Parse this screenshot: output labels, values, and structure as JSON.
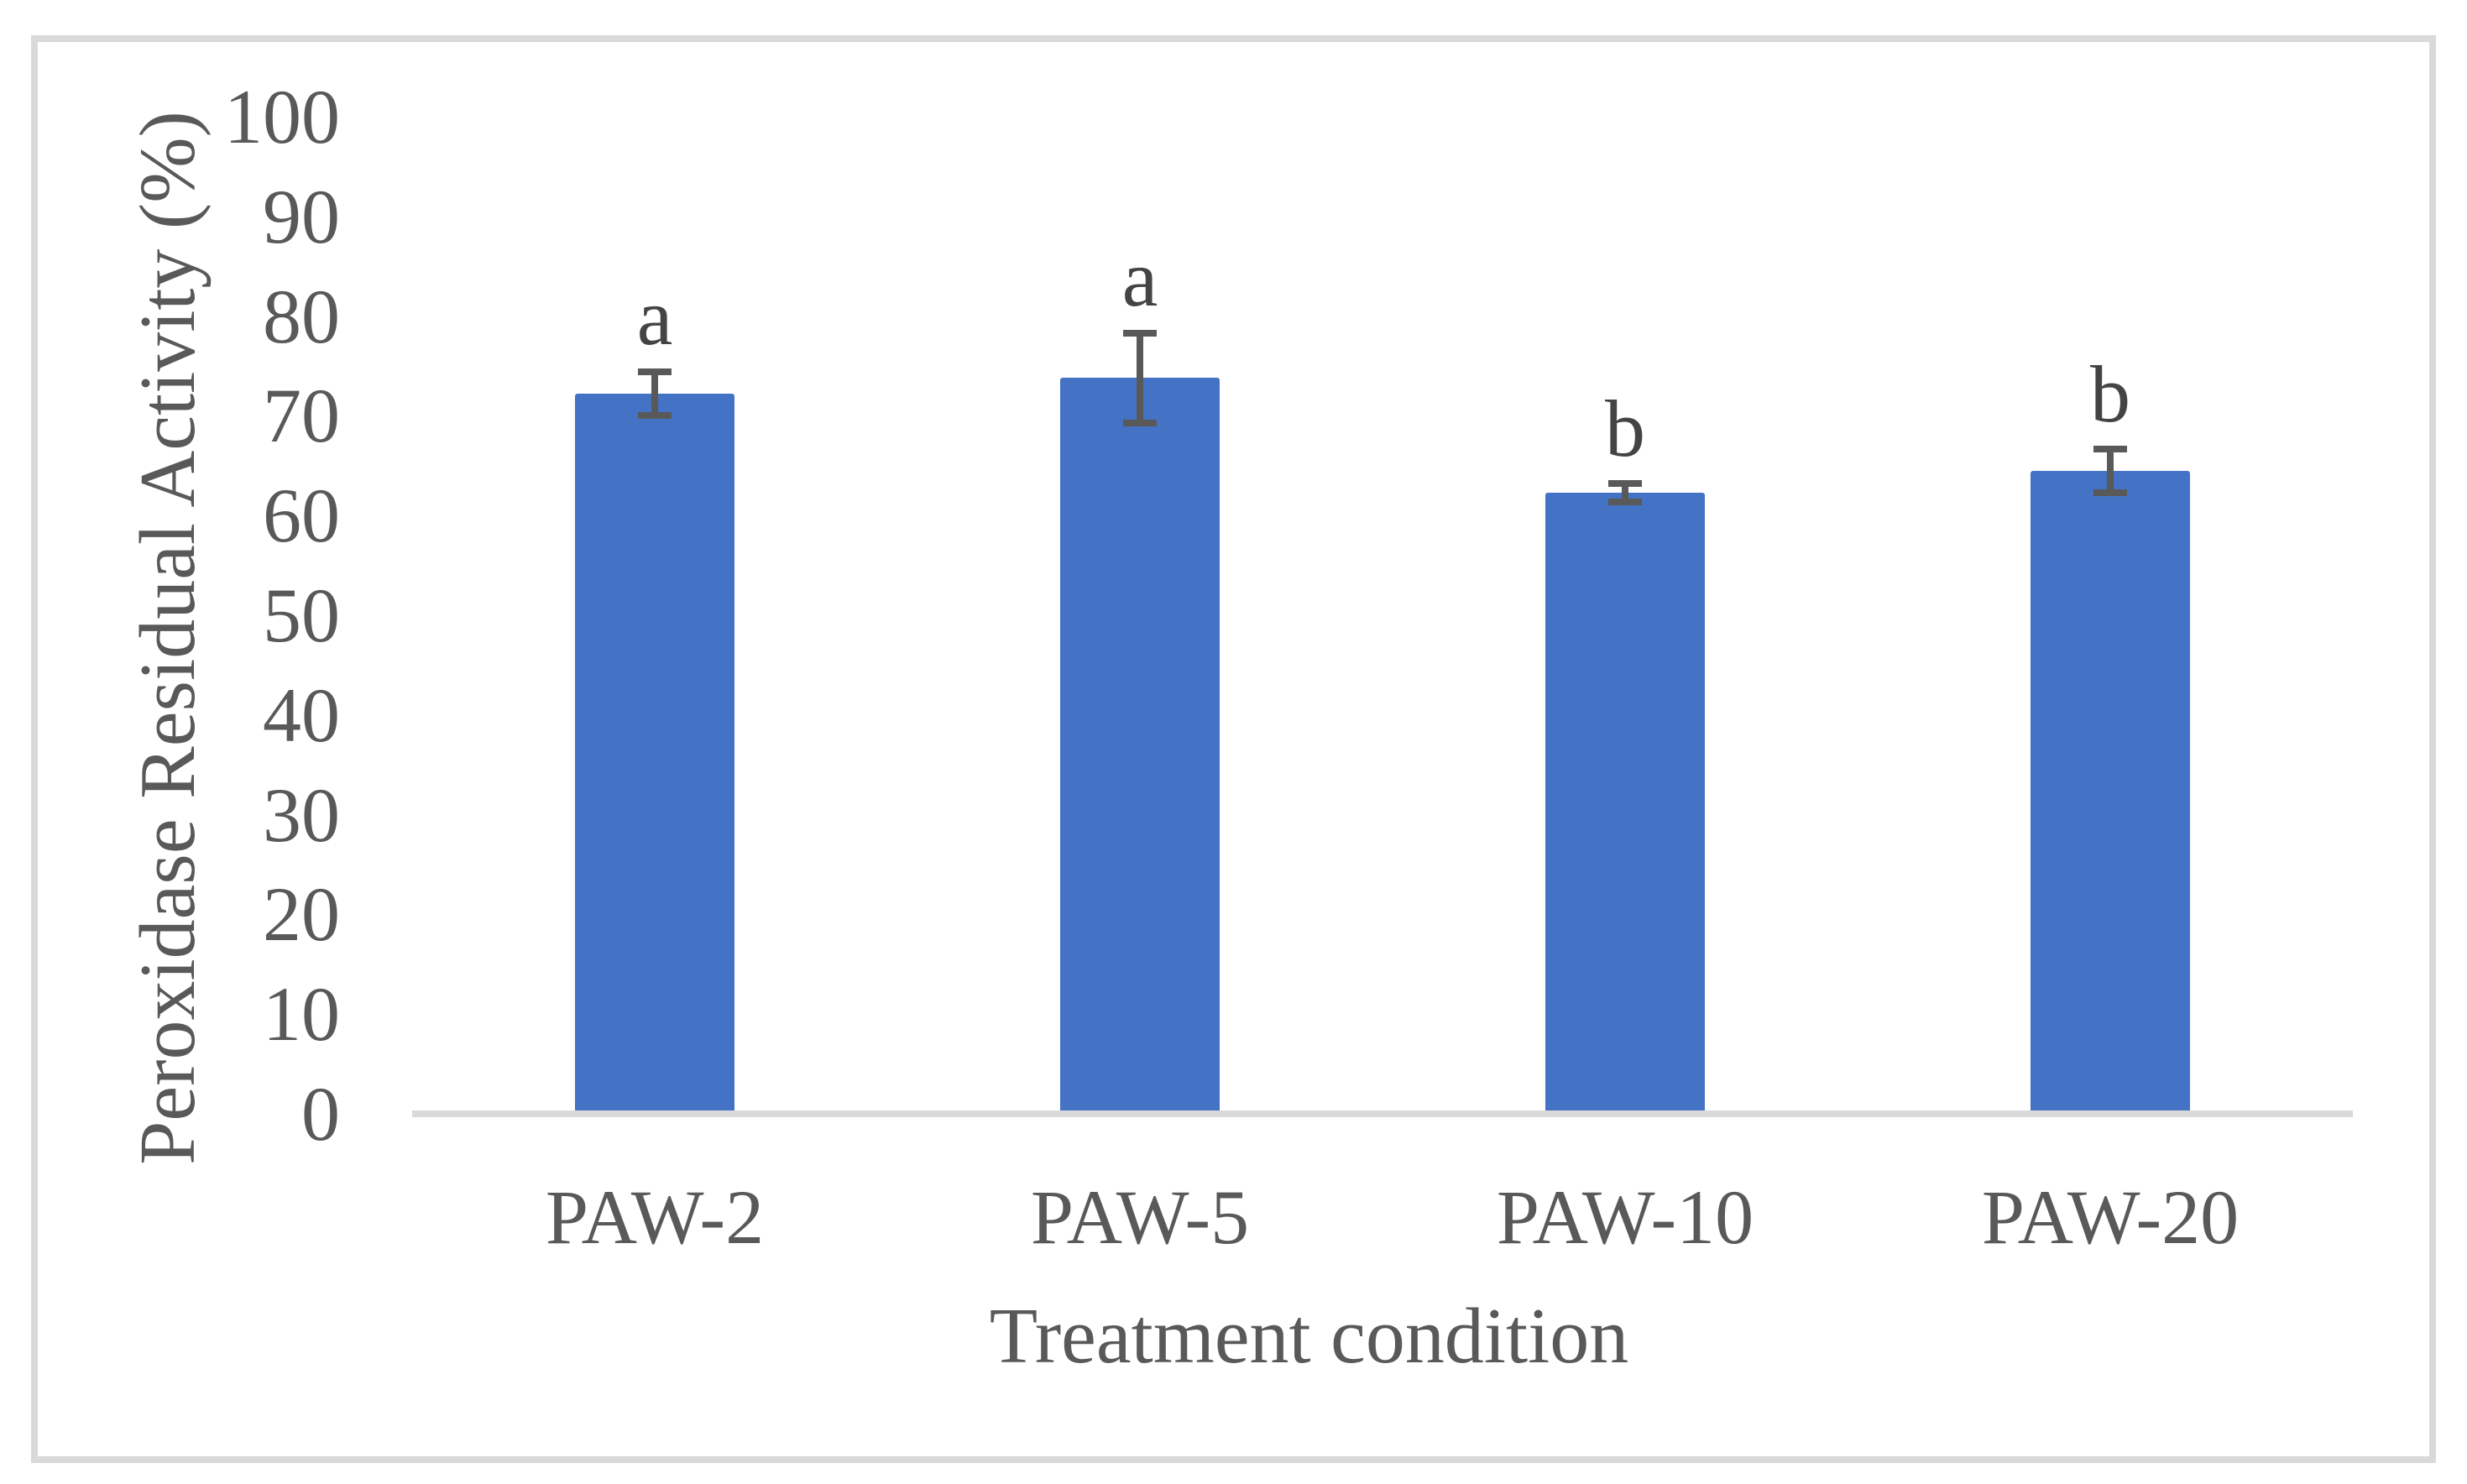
{
  "chart_data": {
    "type": "bar",
    "title": "",
    "xlabel": "Treatment condition",
    "ylabel": "Peroxidase Residual Activity (%)",
    "categories": [
      "PAW-2",
      "PAW-5",
      "PAW-10",
      "PAW-20"
    ],
    "values": [
      72.2,
      73.8,
      62.3,
      64.5
    ],
    "error_bars": [
      2.2,
      4.5,
      0.9,
      2.2
    ],
    "significance_letters": [
      "a",
      "a",
      "b",
      "b"
    ],
    "y_ticks": [
      0,
      10,
      20,
      30,
      40,
      50,
      60,
      70,
      80,
      90,
      100
    ],
    "ylim": [
      0,
      100
    ],
    "grid": false,
    "legend": null,
    "colors": {
      "bar_fill": "#4472c4",
      "error_bar": "#595959",
      "axis_line": "#d9d9d9",
      "tick_label": "#595959",
      "axis_title": "#595959",
      "letter": "#444444",
      "figure_border": "#d9d9d9",
      "background": "#ffffff"
    }
  }
}
